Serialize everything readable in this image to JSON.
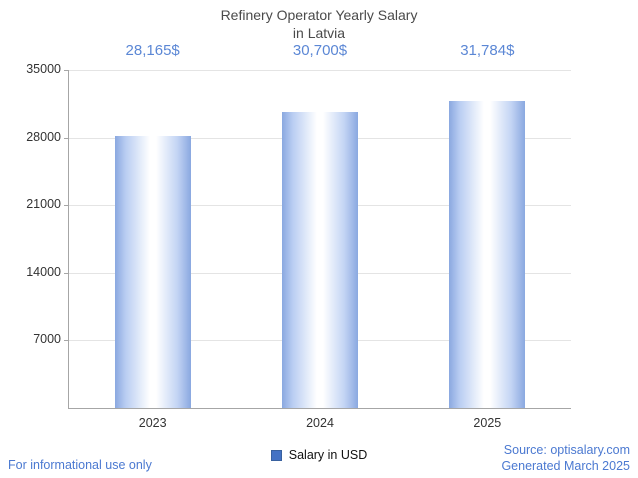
{
  "title": {
    "line1": "Refinery Operator Yearly Salary",
    "line2": "in Latvia"
  },
  "chart_data": {
    "type": "bar",
    "title": "Refinery Operator Yearly Salary in Latvia",
    "categories": [
      "2023",
      "2024",
      "2025"
    ],
    "values": [
      28165,
      30700,
      31784
    ],
    "value_labels": [
      "28,165$",
      "30,700$",
      "31,784$"
    ],
    "yticks": [
      7000,
      14000,
      21000,
      28000,
      35000
    ],
    "ylim": [
      0,
      35000
    ],
    "xlabel": "",
    "ylabel": "",
    "grid": true,
    "legend_position": "bottom",
    "legend_entries": [
      "Salary in USD"
    ],
    "series_color": "#4472c4",
    "value_label_color": "#5b87d5"
  },
  "legend": {
    "label": "Salary in USD",
    "swatch_color": "#4472c4"
  },
  "footer": {
    "left": "For informational use only",
    "source": "Source: optisalary.com",
    "generated": "Generated March 2025"
  },
  "colors": {
    "accent_blue": "#4b79d1",
    "title_gray": "#4a4a4a",
    "axis_gray": "#a6a6a6",
    "grid_gray": "#e4e4e4"
  }
}
